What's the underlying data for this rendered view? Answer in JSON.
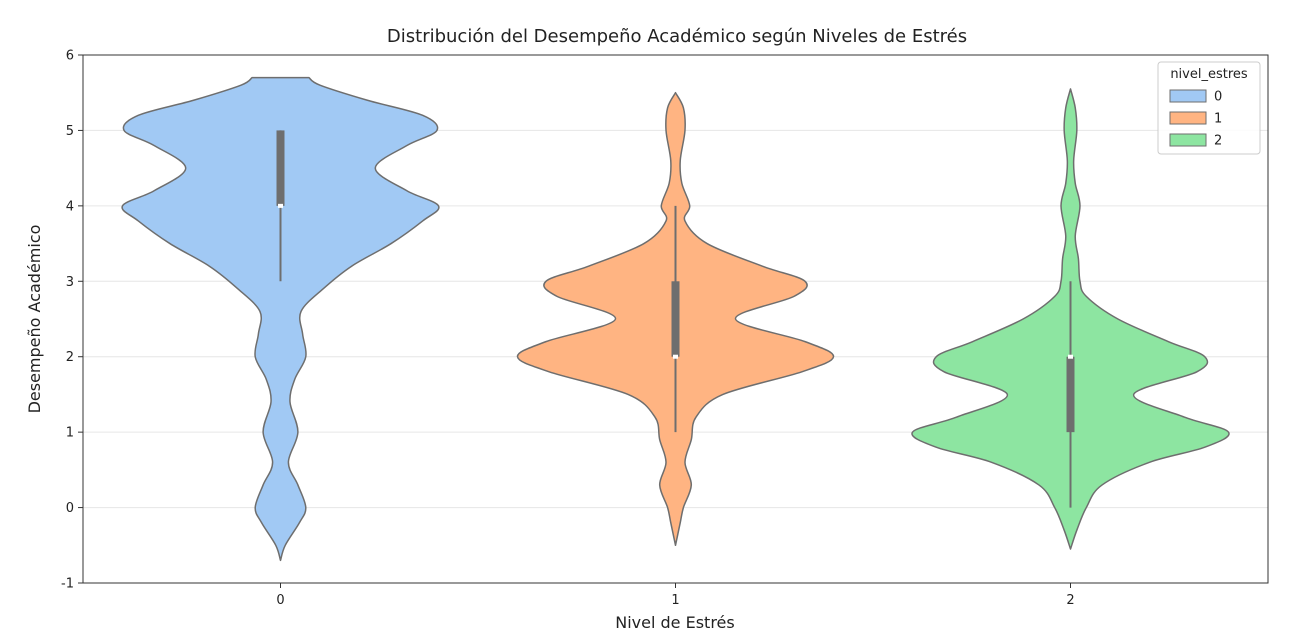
{
  "chart_data": {
    "type": "violin",
    "title": "Distribución del Desempeño Académico según Niveles de Estrés",
    "xlabel": "Nivel de Estrés",
    "ylabel": "Desempeño Académico",
    "categories": [
      "0",
      "1",
      "2"
    ],
    "ylim": [
      -1,
      6
    ],
    "yticks": [
      "-1",
      "0",
      "1",
      "2",
      "3",
      "4",
      "5",
      "6"
    ],
    "grid": "horizontal",
    "legend": {
      "title": "nivel_estres",
      "placement": "top-right",
      "entries": [
        "0",
        "1",
        "2"
      ]
    },
    "colors": [
      "#a1c9f4",
      "#ffb482",
      "#8de5a1"
    ],
    "edge_color": "#6e6e6e",
    "series": [
      {
        "category": "0",
        "box": {
          "min": 3,
          "q1": 4,
          "median": 4,
          "q3": 5,
          "max": 5
        },
        "density": [
          [
            -0.7,
            0.0
          ],
          [
            -0.5,
            0.03
          ],
          [
            -0.2,
            0.12
          ],
          [
            0.0,
            0.16
          ],
          [
            0.3,
            0.11
          ],
          [
            0.6,
            0.05
          ],
          [
            1.0,
            0.11
          ],
          [
            1.4,
            0.06
          ],
          [
            1.7,
            0.09
          ],
          [
            2.0,
            0.16
          ],
          [
            2.3,
            0.14
          ],
          [
            2.6,
            0.13
          ],
          [
            2.9,
            0.27
          ],
          [
            3.2,
            0.45
          ],
          [
            3.5,
            0.7
          ],
          [
            3.8,
            0.9
          ],
          [
            4.0,
            1.0
          ],
          [
            4.2,
            0.8
          ],
          [
            4.5,
            0.6
          ],
          [
            4.8,
            0.8
          ],
          [
            5.0,
            0.99
          ],
          [
            5.2,
            0.9
          ],
          [
            5.4,
            0.55
          ],
          [
            5.6,
            0.25
          ],
          [
            5.7,
            0.18
          ]
        ]
      },
      {
        "category": "1",
        "box": {
          "min": 1,
          "q1": 2,
          "median": 2,
          "q3": 3,
          "max": 4
        },
        "density": [
          [
            -0.5,
            0.0
          ],
          [
            -0.2,
            0.03
          ],
          [
            0.0,
            0.05
          ],
          [
            0.3,
            0.1
          ],
          [
            0.6,
            0.06
          ],
          [
            0.9,
            0.1
          ],
          [
            1.2,
            0.13
          ],
          [
            1.5,
            0.3
          ],
          [
            1.8,
            0.8
          ],
          [
            2.0,
            1.0
          ],
          [
            2.2,
            0.82
          ],
          [
            2.5,
            0.38
          ],
          [
            2.8,
            0.75
          ],
          [
            3.0,
            0.82
          ],
          [
            3.2,
            0.55
          ],
          [
            3.5,
            0.2
          ],
          [
            3.8,
            0.06
          ],
          [
            4.0,
            0.09
          ],
          [
            4.3,
            0.04
          ],
          [
            4.6,
            0.03
          ],
          [
            5.0,
            0.06
          ],
          [
            5.3,
            0.05
          ],
          [
            5.5,
            0.0
          ]
        ]
      },
      {
        "category": "2",
        "box": {
          "min": 0,
          "q1": 1,
          "median": 2,
          "q3": 2,
          "max": 3
        },
        "density": [
          [
            -0.55,
            0.0
          ],
          [
            -0.3,
            0.04
          ],
          [
            0.0,
            0.1
          ],
          [
            0.3,
            0.2
          ],
          [
            0.6,
            0.5
          ],
          [
            0.8,
            0.85
          ],
          [
            1.0,
            1.0
          ],
          [
            1.2,
            0.72
          ],
          [
            1.5,
            0.4
          ],
          [
            1.8,
            0.8
          ],
          [
            2.0,
            0.85
          ],
          [
            2.2,
            0.62
          ],
          [
            2.5,
            0.3
          ],
          [
            2.8,
            0.1
          ],
          [
            3.0,
            0.06
          ],
          [
            3.3,
            0.05
          ],
          [
            3.6,
            0.03
          ],
          [
            4.0,
            0.06
          ],
          [
            4.3,
            0.03
          ],
          [
            4.6,
            0.02
          ],
          [
            5.0,
            0.04
          ],
          [
            5.3,
            0.03
          ],
          [
            5.55,
            0.0
          ]
        ]
      }
    ]
  }
}
